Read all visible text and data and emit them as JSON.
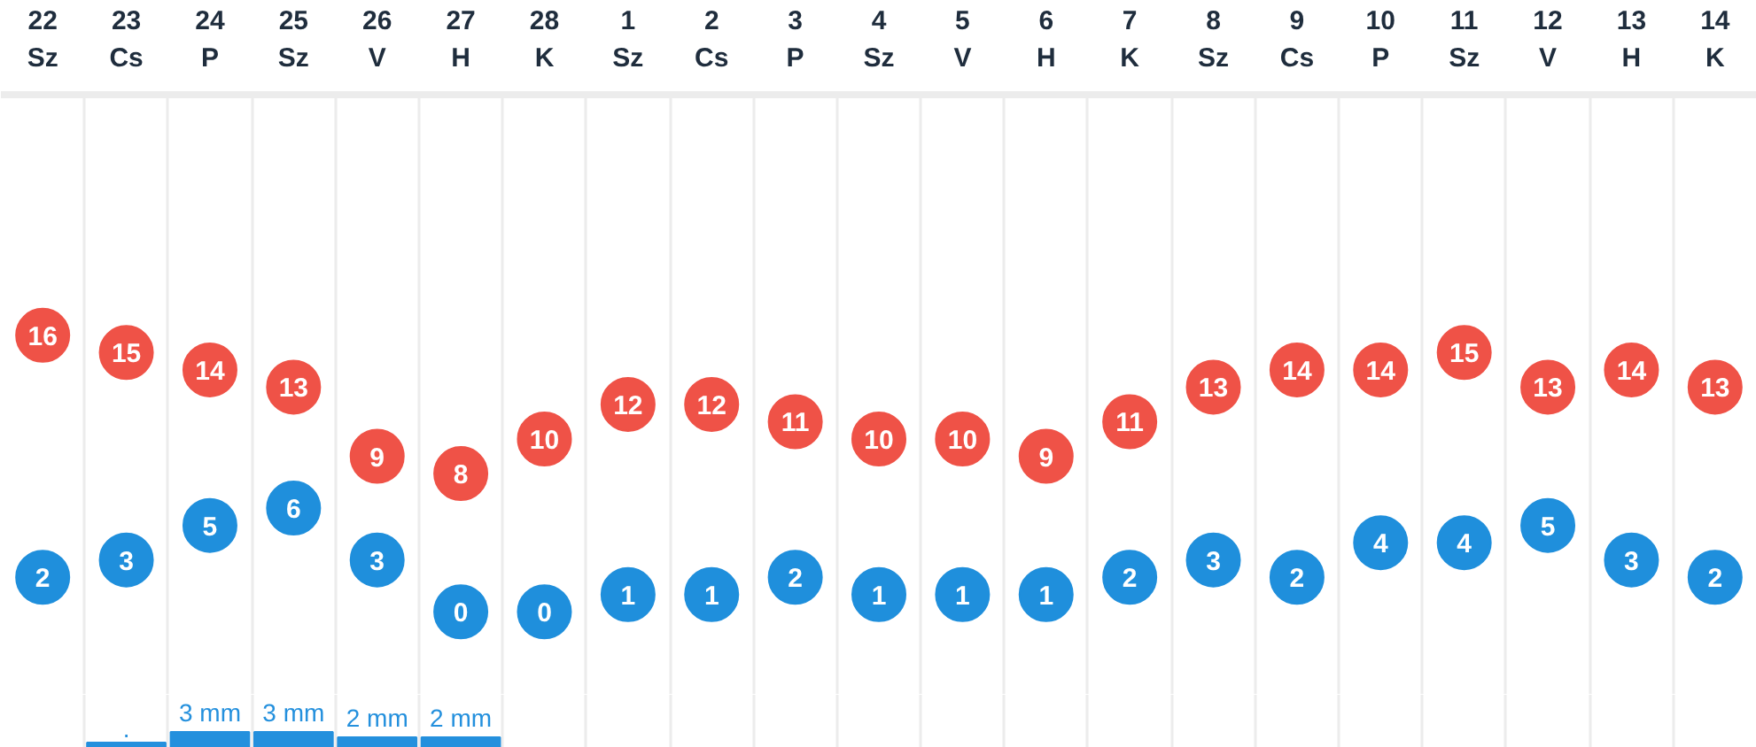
{
  "chart_data": [
    {
      "type": "scatter",
      "marker": "circle",
      "data_labels": true,
      "grid": "x",
      "categories": [
        "22\nSz",
        "23\nCs",
        "24\nP",
        "25\nSz",
        "26\nV",
        "27\nH",
        "28\nK",
        "1\nSz",
        "2\nCs",
        "3\nP",
        "4\nSz",
        "5\nV",
        "6\nH",
        "7\nK",
        "8\nSz",
        "9\nCs",
        "10\nP",
        "11\nSz",
        "12\nV",
        "13\nH",
        "14\nK"
      ],
      "series": [
        {
          "color": "#ef5247",
          "values": [
            16,
            15,
            14,
            13,
            9,
            8,
            10,
            12,
            12,
            11,
            10,
            10,
            9,
            11,
            13,
            14,
            14,
            15,
            13,
            14,
            13
          ]
        },
        {
          "color": "#1f8fdc",
          "values": [
            2,
            3,
            5,
            6,
            3,
            0,
            0,
            1,
            1,
            2,
            1,
            1,
            1,
            2,
            3,
            2,
            4,
            4,
            5,
            3,
            2
          ]
        }
      ]
    },
    {
      "type": "bar",
      "grid": "x",
      "categories": [
        null,
        null,
        null,
        null,
        null,
        null,
        null,
        null,
        null,
        null,
        null,
        null,
        null,
        null,
        null,
        null,
        null,
        null,
        null,
        null,
        null
      ],
      "color": "#2490dd",
      "values": [
        null,
        1,
        3,
        3,
        2,
        2,
        null,
        null,
        null,
        null,
        null,
        null,
        null,
        null,
        null,
        null,
        null,
        null,
        null,
        null,
        null
      ],
      "value_labels": [
        null,
        ".",
        "3 mm",
        "3 mm",
        "2 mm",
        "2 mm",
        null,
        null,
        null,
        null,
        null,
        null,
        null,
        null,
        null,
        null,
        null,
        null,
        null,
        null,
        null
      ]
    }
  ]
}
